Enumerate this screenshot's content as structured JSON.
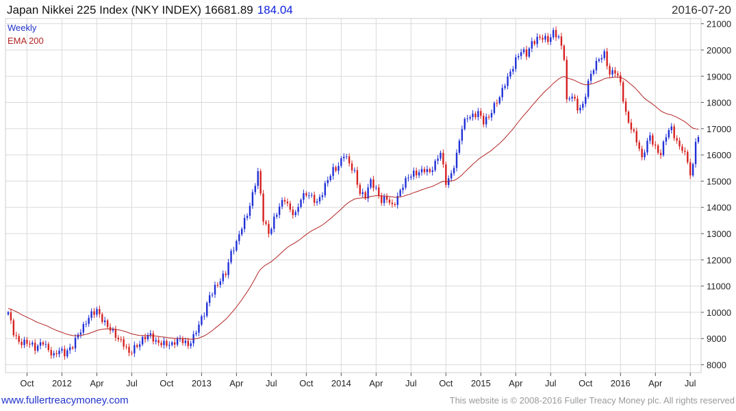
{
  "header": {
    "title": "Japan Nikkei 225 Index (NKY INDEX) 16681.89",
    "change": "184.04",
    "date": "2016-07-20"
  },
  "footer": {
    "website": "www.fullertreacymoney.com",
    "copyright": "This website is © 2008-2016 Fuller Treacy Money plc. All rights reserved"
  },
  "colors": {
    "up": "#1f2fd6",
    "down": "#d62020",
    "ema": "#b22222",
    "grid": "#d9d9d9",
    "weekly_label": "#2030c8",
    "ema_label": "#b22222"
  },
  "chart_data": {
    "type": "candlestick",
    "title": "Japan Nikkei 225 Index (NKY INDEX)",
    "legend": [
      "Weekly",
      "EMA 200"
    ],
    "ylim": [
      7700,
      21200
    ],
    "y_ticks": [
      "8000",
      "9000",
      "10000",
      "11000",
      "12000",
      "13000",
      "14000",
      "15000",
      "16000",
      "17000",
      "18000",
      "19000",
      "20000",
      "21000"
    ],
    "x_ticks": [
      "Oct",
      "2012",
      "Apr",
      "Jul",
      "Oct",
      "2013",
      "Apr",
      "Jul",
      "Oct",
      "2014",
      "Apr",
      "Jul",
      "Oct",
      "2015",
      "Apr",
      "Jul",
      "Oct",
      "2016",
      "Apr",
      "Jul"
    ],
    "x_tick_weeks": [
      7,
      20,
      33,
      46,
      59,
      72,
      85,
      98,
      111,
      124,
      137,
      150,
      163,
      176,
      189,
      202,
      215,
      228,
      241,
      254
    ],
    "weeks": 258,
    "close_anchors": [
      [
        0,
        10000
      ],
      [
        2,
        9300
      ],
      [
        4,
        8900
      ],
      [
        8,
        8750
      ],
      [
        10,
        8600
      ],
      [
        13,
        8950
      ],
      [
        15,
        8600
      ],
      [
        17,
        8300
      ],
      [
        19,
        8500
      ],
      [
        21,
        8400
      ],
      [
        24,
        8800
      ],
      [
        26,
        9200
      ],
      [
        28,
        9400
      ],
      [
        31,
        9900
      ],
      [
        33,
        10100
      ],
      [
        35,
        9800
      ],
      [
        37,
        9500
      ],
      [
        39,
        9200
      ],
      [
        41,
        8900
      ],
      [
        43,
        8800
      ],
      [
        45,
        8500
      ],
      [
        47,
        8700
      ],
      [
        49,
        8800
      ],
      [
        51,
        9000
      ],
      [
        53,
        9100
      ],
      [
        55,
        8900
      ],
      [
        57,
        8900
      ],
      [
        59,
        8800
      ],
      [
        61,
        8700
      ],
      [
        63,
        8900
      ],
      [
        65,
        8950
      ],
      [
        67,
        8800
      ],
      [
        69,
        9100
      ],
      [
        71,
        9500
      ],
      [
        73,
        9900
      ],
      [
        75,
        10600
      ],
      [
        77,
        11000
      ],
      [
        79,
        11300
      ],
      [
        81,
        11500
      ],
      [
        83,
        12200
      ],
      [
        85,
        12600
      ],
      [
        87,
        13300
      ],
      [
        89,
        13800
      ],
      [
        91,
        14500
      ],
      [
        93,
        15300
      ],
      [
        95,
        13500
      ],
      [
        97,
        13000
      ],
      [
        99,
        13600
      ],
      [
        101,
        14100
      ],
      [
        103,
        14300
      ],
      [
        105,
        13800
      ],
      [
        107,
        13700
      ],
      [
        109,
        14400
      ],
      [
        111,
        14600
      ],
      [
        113,
        14400
      ],
      [
        115,
        14100
      ],
      [
        117,
        14500
      ],
      [
        119,
        15100
      ],
      [
        121,
        15500
      ],
      [
        123,
        15600
      ],
      [
        125,
        16000
      ],
      [
        127,
        15600
      ],
      [
        129,
        15300
      ],
      [
        131,
        14600
      ],
      [
        133,
        14500
      ],
      [
        135,
        15000
      ],
      [
        137,
        14600
      ],
      [
        139,
        14200
      ],
      [
        141,
        14400
      ],
      [
        143,
        14100
      ],
      [
        145,
        14400
      ],
      [
        147,
        14800
      ],
      [
        149,
        15100
      ],
      [
        151,
        15300
      ],
      [
        153,
        15400
      ],
      [
        155,
        15500
      ],
      [
        157,
        15300
      ],
      [
        159,
        15600
      ],
      [
        161,
        16100
      ],
      [
        163,
        15000
      ],
      [
        165,
        15300
      ],
      [
        167,
        16000
      ],
      [
        169,
        17000
      ],
      [
        171,
        17400
      ],
      [
        173,
        17500
      ],
      [
        175,
        17700
      ],
      [
        177,
        17300
      ],
      [
        179,
        17400
      ],
      [
        181,
        17800
      ],
      [
        183,
        18200
      ],
      [
        185,
        18800
      ],
      [
        187,
        19200
      ],
      [
        189,
        19600
      ],
      [
        191,
        19900
      ],
      [
        193,
        19800
      ],
      [
        195,
        20300
      ],
      [
        197,
        20500
      ],
      [
        199,
        20500
      ],
      [
        201,
        20300
      ],
      [
        203,
        20600
      ],
      [
        205,
        20500
      ],
      [
        207,
        19800
      ],
      [
        208,
        18100
      ],
      [
        210,
        18300
      ],
      [
        212,
        17700
      ],
      [
        214,
        17800
      ],
      [
        216,
        18800
      ],
      [
        218,
        19400
      ],
      [
        220,
        19700
      ],
      [
        222,
        19800
      ],
      [
        224,
        19000
      ],
      [
        226,
        19200
      ],
      [
        228,
        18800
      ],
      [
        230,
        17600
      ],
      [
        232,
        17000
      ],
      [
        234,
        16500
      ],
      [
        236,
        15800
      ],
      [
        237,
        16200
      ],
      [
        239,
        16800
      ],
      [
        241,
        16300
      ],
      [
        243,
        16000
      ],
      [
        245,
        16700
      ],
      [
        247,
        17000
      ],
      [
        249,
        16500
      ],
      [
        251,
        16300
      ],
      [
        253,
        15800
      ],
      [
        254,
        15200
      ],
      [
        255,
        15500
      ],
      [
        256,
        16497
      ],
      [
        257,
        16682
      ]
    ],
    "last_close": 16681.89,
    "last_change": 184.04
  }
}
